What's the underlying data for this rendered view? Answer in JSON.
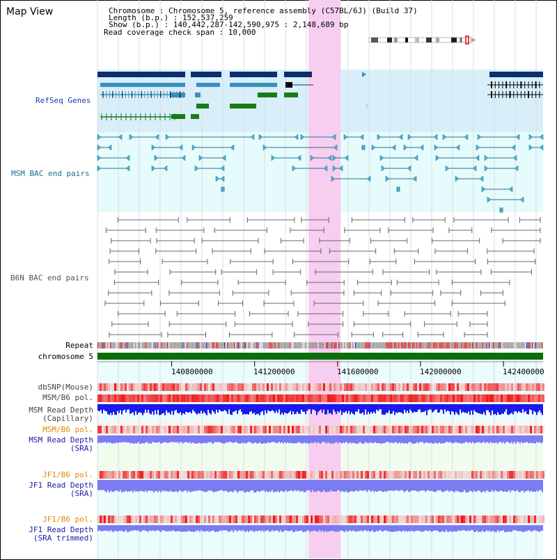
{
  "header": {
    "title": "Map View",
    "info_lines": [
      "Chromosome    : Chromosome 5, reference assembly (C57BL/6J) (Build 37)",
      "Length (b.p.) : 152,537,259",
      "  Show (b.p.) : 140,442,287-142,590,975 : 2,148,689 bp",
      "Read coverage check span : 10,000"
    ]
  },
  "tracks": {
    "refseq": "RefSeq Genes",
    "msm_bac": "MSM BAC end pairs",
    "b6n_bac": "B6N BAC end pairs",
    "repeat": "Repeat",
    "chromosome": "chromosome 5",
    "dbsnp": "dbSNP(Mouse)",
    "msm_b6_pol_1": "MSM/B6 pol.",
    "msm_depth_cap_1": "MSM Read Depth",
    "msm_depth_cap_2": "(Capillary)",
    "msm_b6_pol_2": "MSM/B6 pol.",
    "msm_depth_sra_1": "MSM Read Depth",
    "msm_depth_sra_2": "(SRA)",
    "jf1_b6_pol_1": "JF1/B6 pol.",
    "jf1_depth_sra_1": "JF1 Read Depth",
    "jf1_depth_sra_2": "(SRA)",
    "jf1_b6_pol_2": "JF1/B6 pol.",
    "jf1_depth_trim_1": "JF1 Read Depth",
    "jf1_depth_trim_2": "(SRA trimmed)"
  },
  "axis": {
    "ticks": [
      "140800000",
      "141200000",
      "141600000",
      "142000000",
      "142400000"
    ],
    "tick_values": [
      140800000,
      141200000,
      141600000,
      142000000,
      142400000
    ],
    "range": [
      140442287,
      142590975
    ]
  },
  "highlight_range": [
    141460000,
    141615000
  ],
  "colors": {
    "navy": "#0b2f6b",
    "refseq_bg": "#d8effa",
    "bac_bg": "#e6fbfb",
    "track_bg": "#eafcfb",
    "highlight": "#f7cdf0",
    "gene_green": "#1a7a1a",
    "gene_blue": "#3a8fc0",
    "msm_teal": "#2b6f8e",
    "b6n_gray": "#666666",
    "chrom_green": "#0a6e0a",
    "depth_blue": "#1a1aee",
    "depth_light": "#7b7bf2",
    "pol_red": "#ee2a2a",
    "orange_label": "#e08a00",
    "blue_label": "#1a1aa8"
  }
}
